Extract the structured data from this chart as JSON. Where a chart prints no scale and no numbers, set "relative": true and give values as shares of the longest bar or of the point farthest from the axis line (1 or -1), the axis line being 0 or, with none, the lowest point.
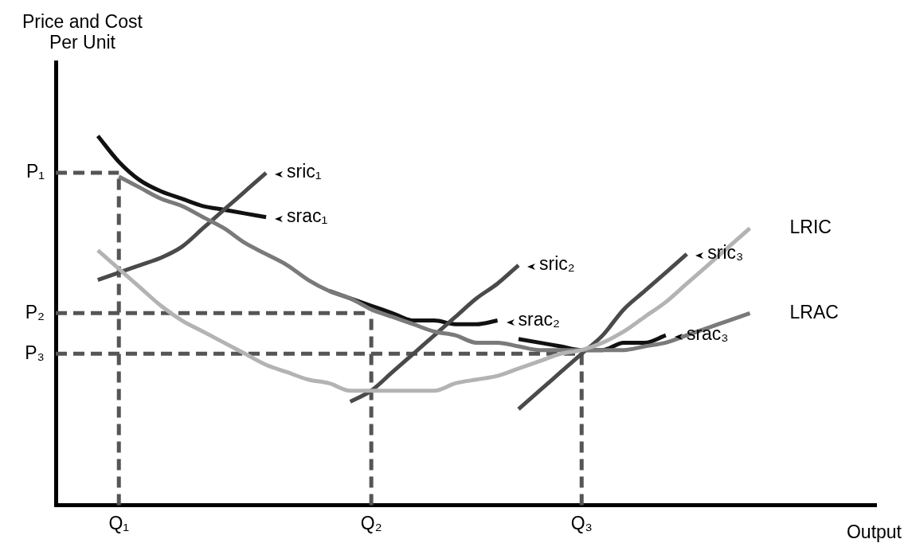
{
  "chart_data": {
    "type": "line",
    "ylabel": "Price and Cost\nPer Unit",
    "xlabel": "Output",
    "relative": true,
    "categories": [
      null,
      null,
      null,
      "Q₁",
      null,
      null,
      null,
      null,
      null,
      null,
      null,
      null,
      null,
      null,
      null,
      "Q₂",
      null,
      null,
      null,
      null,
      null,
      null,
      null,
      null,
      null,
      "Q₃",
      null,
      null,
      null,
      null,
      null,
      null,
      null,
      null,
      null,
      null,
      null,
      null,
      null,
      null
    ],
    "grid": false,
    "legend": false,
    "marker": "none",
    "series": [
      {
        "name": "LRIC",
        "color": "#b3b3b3",
        "values": [
          null,
          null,
          0.69,
          0.64,
          0.59,
          0.54,
          0.5,
          0.47,
          0.44,
          0.41,
          0.38,
          0.36,
          0.34,
          0.33,
          0.31,
          0.31,
          0.31,
          0.31,
          0.31,
          0.33,
          0.34,
          0.35,
          0.37,
          0.39,
          0.41,
          0.42,
          0.44,
          0.47,
          0.51,
          0.55,
          0.6,
          0.65,
          0.7,
          0.75,
          null,
          null,
          null,
          null,
          null,
          null
        ]
      },
      {
        "name": "LRAC",
        "color": "#7a7a7a",
        "values": [
          null,
          null,
          null,
          0.89,
          0.86,
          0.83,
          0.81,
          0.78,
          0.75,
          0.71,
          0.68,
          0.65,
          0.61,
          0.58,
          0.56,
          0.53,
          0.51,
          0.49,
          0.47,
          0.46,
          0.44,
          0.44,
          0.43,
          0.42,
          0.42,
          0.42,
          0.42,
          0.42,
          0.43,
          0.44,
          0.46,
          0.48,
          0.5,
          0.52,
          null,
          null,
          null,
          null,
          null,
          null
        ]
      },
      {
        "name": "sric₁",
        "color": "#4a4a4a",
        "values": [
          null,
          null,
          0.61,
          0.63,
          0.65,
          0.67,
          0.7,
          0.75,
          0.8,
          0.85,
          0.9,
          null,
          null,
          null,
          null,
          null,
          null,
          null,
          null,
          null,
          null,
          null,
          null,
          null,
          null,
          null,
          null,
          null,
          null,
          null,
          null,
          null,
          null,
          null,
          null,
          null,
          null,
          null,
          null,
          null
        ]
      },
      {
        "name": "sric₂",
        "color": "#4a4a4a",
        "values": [
          null,
          null,
          null,
          null,
          null,
          null,
          null,
          null,
          null,
          null,
          null,
          null,
          null,
          null,
          0.28,
          0.31,
          0.36,
          0.41,
          0.46,
          0.51,
          0.56,
          0.6,
          0.65,
          null,
          null,
          null,
          null,
          null,
          null,
          null,
          null,
          null,
          null,
          null,
          null,
          null,
          null,
          null,
          null,
          null
        ]
      },
      {
        "name": "sric₃",
        "color": "#4a4a4a",
        "values": [
          null,
          null,
          null,
          null,
          null,
          null,
          null,
          null,
          null,
          null,
          null,
          null,
          null,
          null,
          null,
          null,
          null,
          null,
          null,
          null,
          null,
          null,
          0.26,
          0.31,
          0.36,
          0.41,
          0.46,
          0.53,
          0.58,
          0.63,
          0.68,
          null,
          null,
          null,
          null,
          null,
          null,
          null,
          null,
          null
        ]
      },
      {
        "name": "srac₁",
        "color": "#111111",
        "values": [
          null,
          null,
          1.0,
          0.93,
          0.88,
          0.85,
          0.83,
          0.81,
          0.8,
          0.79,
          0.78,
          null,
          null,
          null,
          null,
          null,
          null,
          null,
          null,
          null,
          null,
          null,
          null,
          null,
          null,
          null,
          null,
          null,
          null,
          null,
          null,
          null,
          null,
          null,
          null,
          null,
          null,
          null,
          null,
          null
        ]
      },
      {
        "name": "srac₂",
        "color": "#111111",
        "values": [
          null,
          null,
          null,
          null,
          null,
          null,
          null,
          null,
          null,
          null,
          null,
          null,
          null,
          0.58,
          0.56,
          0.54,
          0.52,
          0.5,
          0.5,
          0.49,
          0.49,
          0.5,
          null,
          null,
          null,
          null,
          null,
          null,
          null,
          null,
          null,
          null,
          null,
          null,
          null,
          null,
          null,
          null,
          null,
          null
        ]
      },
      {
        "name": "srac₃",
        "color": "#111111",
        "values": [
          null,
          null,
          null,
          null,
          null,
          null,
          null,
          null,
          null,
          null,
          null,
          null,
          null,
          null,
          null,
          null,
          null,
          null,
          null,
          null,
          null,
          null,
          0.45,
          0.44,
          0.43,
          0.42,
          0.42,
          0.44,
          0.44,
          0.46,
          null,
          null,
          null,
          null,
          null,
          null,
          null,
          null,
          null,
          null
        ]
      }
    ],
    "ref_lines": [
      {
        "axis": "y",
        "value": 0.9,
        "label": "P₁",
        "color": "#555555",
        "line_style": "dashed"
      },
      {
        "axis": "y",
        "value": 0.52,
        "label": "P₂",
        "color": "#555555",
        "line_style": "dashed"
      },
      {
        "axis": "y",
        "value": 0.41,
        "label": "P₃",
        "color": "#555555",
        "line_style": "dashed"
      },
      {
        "axis": "x",
        "value": "Q₁",
        "color": "#555555",
        "line_style": "dashed"
      },
      {
        "axis": "x",
        "value": "Q₂",
        "color": "#555555",
        "line_style": "dashed"
      },
      {
        "axis": "x",
        "value": "Q₃",
        "color": "#555555",
        "line_style": "dashed"
      }
    ]
  }
}
